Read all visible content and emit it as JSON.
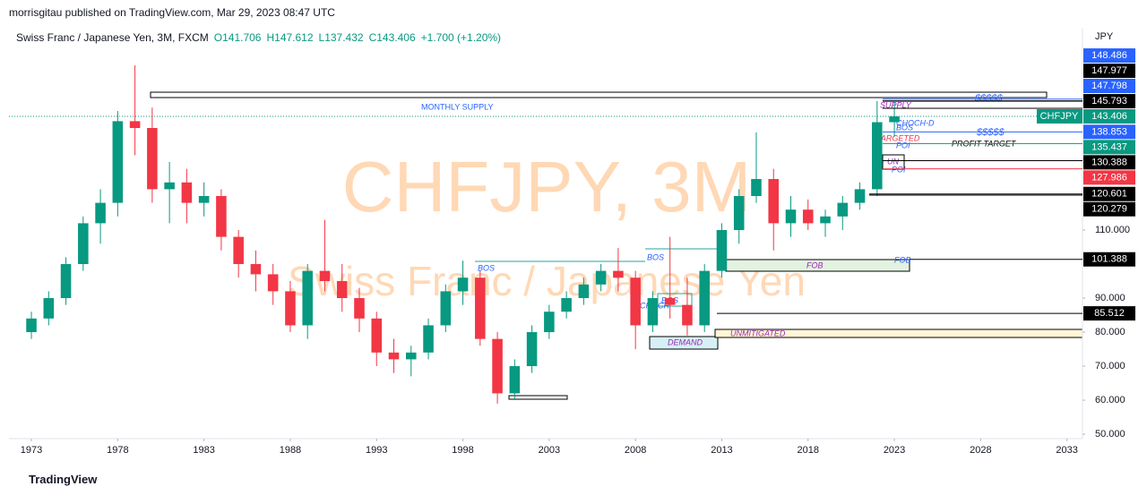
{
  "header": "morrisgitau published on TradingView.com, Mar 29, 2023 08:47 UTC",
  "footer": "TradingView",
  "chart_data": {
    "type": "candlestick",
    "title": "Swiss Franc / Japanese Yen, 3M, FXCM",
    "ohlc_legend": [
      "O141.706",
      "H147.612",
      "L137.432",
      "C143.406",
      "+1.700 (+1.20%)"
    ],
    "watermark": [
      "CHFJPY, 3M",
      "Swiss Franc / Japanese Yen"
    ],
    "symbol": "CHFJPY",
    "axis_label": "JPY",
    "up_color": "#089981",
    "down_color": "#f23645",
    "x": [
      1973,
      1974,
      1975,
      1976,
      1977,
      1978,
      1979,
      1980,
      1981,
      1982,
      1983,
      1984,
      1985,
      1986,
      1987,
      1988,
      1989,
      1990,
      1991,
      1992,
      1993,
      1994,
      1995,
      1996,
      1997,
      1998,
      1999,
      2000,
      2001,
      2002,
      2003,
      2004,
      2005,
      2006,
      2007,
      2008,
      2009,
      2010,
      2011,
      2012,
      2013,
      2014,
      2015,
      2016,
      2017,
      2018,
      2019,
      2020,
      2021,
      2022,
      2023
    ],
    "open": [
      80,
      84,
      90,
      100,
      112,
      118,
      142,
      140,
      122,
      124,
      118,
      120,
      108,
      100,
      97,
      92,
      82,
      98,
      95,
      90,
      84,
      74,
      72,
      74,
      82,
      92,
      96,
      78,
      62,
      70,
      80,
      86,
      90,
      94,
      98,
      96,
      82,
      90,
      88,
      82,
      98,
      110,
      120,
      125,
      112,
      116,
      112,
      114,
      118,
      122,
      141.706
    ],
    "high": [
      86,
      92,
      102,
      114,
      122,
      145,
      158.4,
      146,
      130,
      128,
      124,
      122,
      110,
      104,
      100,
      95,
      100,
      113,
      100,
      93,
      86,
      78,
      76,
      84,
      94,
      101,
      98,
      80,
      72,
      82,
      88,
      92,
      96,
      100,
      104.7,
      98,
      92,
      108,
      96,
      100,
      112,
      122,
      138.7,
      128,
      120,
      119,
      116,
      120,
      124,
      147.9,
      147.612
    ],
    "low": [
      78,
      82,
      88,
      98,
      106,
      114,
      132,
      118,
      112,
      112,
      114,
      104,
      96,
      92,
      88,
      80,
      78,
      92,
      86,
      80,
      70,
      68,
      67,
      72,
      80,
      88,
      76,
      59,
      60,
      68,
      78,
      84,
      88,
      92,
      92,
      75,
      80,
      84,
      79,
      80,
      96,
      106,
      118,
      104,
      108,
      110,
      108,
      110,
      116,
      120,
      137.432
    ],
    "close": [
      84,
      90,
      100,
      112,
      118,
      142,
      140,
      122,
      124,
      118,
      120,
      108,
      100,
      97,
      92,
      82,
      98,
      95,
      90,
      84,
      74,
      72,
      74,
      82,
      92,
      96,
      78,
      62,
      70,
      80,
      86,
      90,
      94,
      98,
      96,
      82,
      90,
      88,
      82,
      98,
      110,
      120,
      125,
      112,
      116,
      112,
      114,
      118,
      122,
      141.706,
      143.406
    ],
    "xlim": [
      1971.7,
      2033.9
    ],
    "ylim": [
      48.7,
      169.2
    ],
    "xticks": [
      1973,
      1978,
      1983,
      1988,
      1993,
      1998,
      2003,
      2008,
      2013,
      2018,
      2023,
      2028,
      2033
    ],
    "yticks": [
      {
        "value": 50,
        "label": "50.000"
      },
      {
        "value": 60,
        "label": "60.000"
      },
      {
        "value": 70,
        "label": "70.000"
      },
      {
        "value": 80,
        "label": "80.000"
      },
      {
        "value": 90,
        "label": "90.000"
      },
      {
        "value": 110,
        "label": "110.000"
      }
    ],
    "price_lines": [
      {
        "value": 148.486,
        "color": "#2962ff"
      },
      {
        "value": 147.977,
        "color": "#000000"
      },
      {
        "value": 147.798,
        "color": "#2962ff"
      },
      {
        "value": 145.793,
        "color": "#000000"
      },
      {
        "value": 143.406,
        "color": "#089981"
      },
      {
        "value": 138.853,
        "color": "#2962ff"
      },
      {
        "value": 135.437,
        "color": "#089981"
      },
      {
        "value": 130.388,
        "color": "#000000"
      },
      {
        "value": 127.986,
        "color": "#f23645"
      },
      {
        "value": 120.601,
        "color": "#000000"
      },
      {
        "value": 120.279,
        "color": "#000000"
      },
      {
        "value": 101.388,
        "color": "#000000"
      },
      {
        "value": 85.512,
        "color": "#000000"
      }
    ],
    "annotations": [
      "MONTHLY SUPPLY",
      "BOS",
      "BOS",
      "CHOCH",
      "BOS",
      "DEMAND",
      "UNMITIGATED",
      "FOB",
      "FOB",
      "SUPPLY",
      "$$$$$",
      "CHOCH-D",
      "BOS",
      "$$$$$",
      "TARGETED",
      "POI",
      "PROFIT TARGET",
      "UN",
      "POI"
    ]
  }
}
